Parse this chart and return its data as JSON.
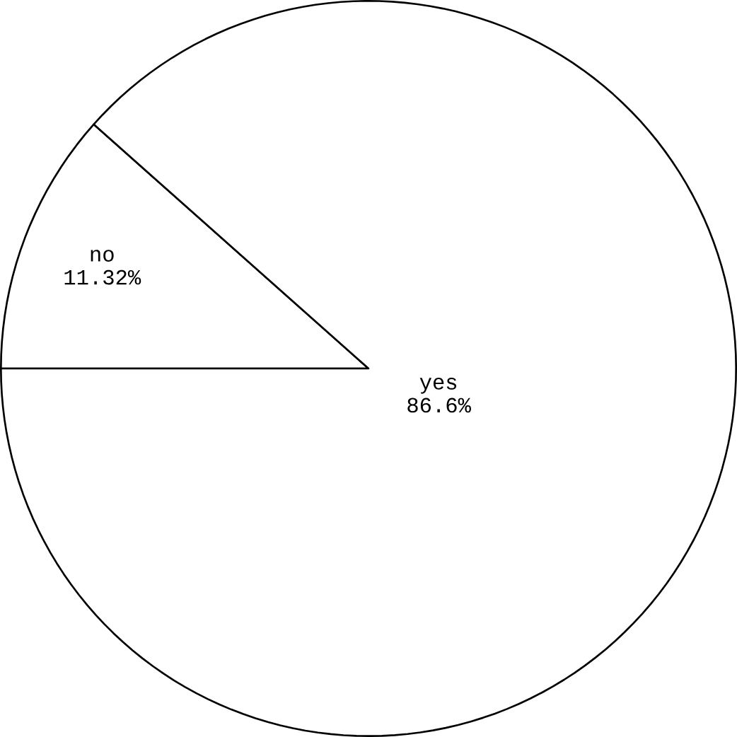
{
  "chart_data": {
    "type": "pie",
    "categories": [
      "no",
      "yes"
    ],
    "values": [
      11.32,
      86.6
    ],
    "value_labels": [
      "11.32%",
      "86.6%"
    ],
    "colors": [
      "#ffffff",
      "#ffffff"
    ]
  }
}
